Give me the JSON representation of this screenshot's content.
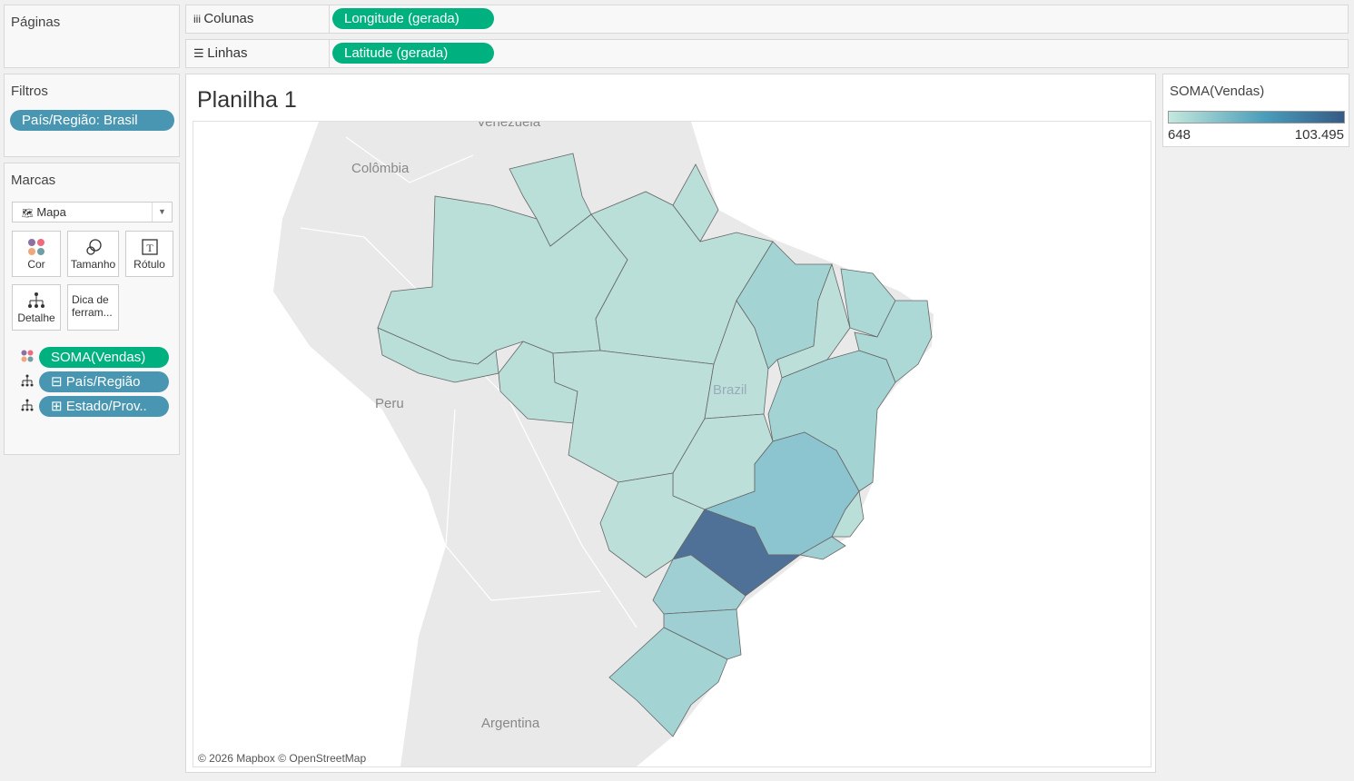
{
  "pages": {
    "title": "Páginas"
  },
  "columns": {
    "label": "Colunas",
    "pill": "Longitude (gerada)"
  },
  "rows": {
    "label": "Linhas",
    "pill": "Latitude (gerada)"
  },
  "filters": {
    "title": "Filtros",
    "pill": "País/Região: Brasil"
  },
  "marks": {
    "title": "Marcas",
    "type": "Mapa",
    "cards": [
      {
        "label": "Cor",
        "icon": "color-icon"
      },
      {
        "label": "Tamanho",
        "icon": "size-icon"
      },
      {
        "label": "Rótulo",
        "icon": "label-icon"
      },
      {
        "label": "Detalhe",
        "icon": "detail-icon"
      },
      {
        "label": "Dica de ferram..."
      }
    ],
    "fields": [
      {
        "label": "SOMA(Vendas)",
        "icon": "color-icon"
      },
      {
        "label": "⊟ País/Região",
        "icon": "detail-icon"
      },
      {
        "label": "⊞ Estado/Prov..",
        "icon": "detail-icon"
      }
    ]
  },
  "sheet": {
    "title": "Planilha 1"
  },
  "map": {
    "labels": [
      "Venezuela",
      "Colômbia",
      "Peru",
      "Brazil",
      "Argentina"
    ],
    "attribution": "© 2026 Mapbox © OpenStreetMap"
  },
  "legend": {
    "title": "SOMA(Vendas)",
    "min": "648",
    "max": "103.495",
    "color_low": "#c4e8dd",
    "color_mid": "#4a9dba",
    "color_high": "#355b85"
  }
}
